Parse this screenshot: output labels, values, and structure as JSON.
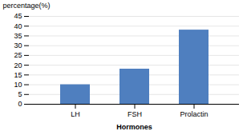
{
  "chart_data": {
    "type": "bar",
    "categories": [
      "LH",
      "FSH",
      "Prolactin"
    ],
    "values": [
      10,
      18,
      38
    ],
    "color": "#4f7fbf",
    "xlabel": "Hormones",
    "ylabel": "percentage(%)",
    "ylim": [
      0,
      45
    ],
    "yticks": [
      0,
      5,
      10,
      15,
      20,
      25,
      30,
      35,
      40,
      45
    ],
    "grid": true
  }
}
